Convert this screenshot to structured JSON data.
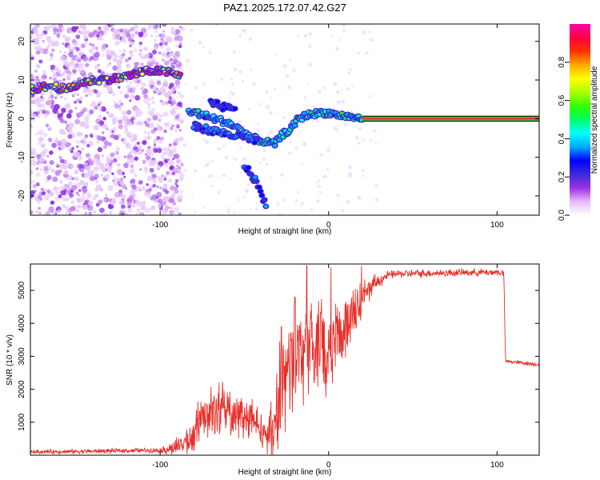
{
  "title": "PAZ1.2025.172.07.42.G27",
  "colors": {
    "snr_line": "#e8302a",
    "frame": "#000000",
    "scatter_purple": "#8a2be2",
    "carrier_core": "#e8302a",
    "carrier_glow": "#33cc33"
  },
  "chart_data": [
    {
      "type": "heatmap",
      "xlabel": "Height of straight line (km)",
      "ylabel": "Frequency (Hz)",
      "xlim": [
        -177,
        125
      ],
      "ylim": [
        -25,
        24.5
      ],
      "xticks": [
        -100,
        0,
        100
      ],
      "yticks": [
        -20,
        -10,
        0,
        10,
        20
      ],
      "grid": false,
      "colorbar": {
        "label": "Normalized spectral amplitude",
        "range": [
          0,
          1
        ],
        "ticks": [
          0.0,
          0.2,
          0.4,
          0.6,
          0.8
        ],
        "colormap": [
          "#ffffff",
          "#e8b8f8",
          "#9b30e8",
          "#3a2bd8",
          "#0000ff",
          "#00aaff",
          "#00ffff",
          "#00ff66",
          "#33ff00",
          "#aaff00",
          "#ffff00",
          "#ffaa00",
          "#ff3300",
          "#ff0044",
          "#ff00aa"
        ]
      },
      "ridges": [
        {
          "name": "carrier",
          "amplitude": 0.9,
          "points": [
            [
              -177,
              7.5
            ],
            [
              -165,
              8.5
            ],
            [
              -155,
              7.5
            ],
            [
              -145,
              9.5
            ],
            [
              -137,
              10
            ],
            [
              -125,
              10.5
            ],
            [
              -115,
              11.5
            ],
            [
              -105,
              12.5
            ],
            [
              -95,
              12
            ],
            [
              -88,
              11
            ]
          ]
        },
        {
          "name": "carrier",
          "amplitude": 0.45,
          "points": [
            [
              -83,
              2
            ],
            [
              -75,
              1
            ],
            [
              -68,
              0
            ],
            [
              -60,
              -1
            ],
            [
              -52,
              -3
            ],
            [
              -45,
              -5
            ],
            [
              -38,
              -6
            ],
            [
              -32,
              -6.5
            ],
            [
              -27,
              -4
            ],
            [
              -22,
              -2.5
            ],
            [
              -18,
              0
            ],
            [
              -12,
              1
            ],
            [
              -5,
              1.5
            ],
            [
              0,
              1.5
            ],
            [
              5,
              1
            ],
            [
              12,
              0.5
            ],
            [
              20,
              0
            ],
            [
              30,
              0
            ],
            [
              60,
              0
            ],
            [
              105,
              0
            ],
            [
              125,
              0
            ]
          ]
        },
        {
          "name": "secondary",
          "amplitude": 0.3,
          "points": [
            [
              -80,
              -2
            ],
            [
              -70,
              -3
            ],
            [
              -60,
              -4
            ],
            [
              -50,
              -5
            ],
            [
              -42,
              -6
            ]
          ]
        },
        {
          "name": "secondary",
          "amplitude": 0.25,
          "points": [
            [
              -70,
              4
            ],
            [
              -62,
              3
            ],
            [
              -55,
              2
            ]
          ]
        },
        {
          "name": "fading",
          "amplitude": 0.3,
          "points": [
            [
              -50,
              -12
            ],
            [
              -45,
              -15
            ],
            [
              -40,
              -19
            ],
            [
              -37,
              -23
            ]
          ]
        }
      ]
    },
    {
      "type": "line",
      "xlabel": "Height of straight line (km)",
      "ylabel": "SNR (10 * v/v)",
      "xlim": [
        -177,
        125
      ],
      "ylim": [
        0,
        5800
      ],
      "xticks": [
        -100,
        0,
        100
      ],
      "yticks": [
        1000,
        2000,
        3000,
        4000,
        5000
      ],
      "grid": false,
      "series": [
        {
          "envelope": [
            [
              -177,
              100
            ],
            [
              -160,
              110
            ],
            [
              -140,
              120
            ],
            [
              -120,
              140
            ],
            [
              -100,
              150
            ],
            [
              -92,
              210
            ],
            [
              -85,
              350
            ],
            [
              -80,
              600
            ],
            [
              -75,
              1100
            ],
            [
              -70,
              1350
            ],
            [
              -60,
              1300
            ],
            [
              -50,
              1150
            ],
            [
              -42,
              900
            ],
            [
              -35,
              600
            ],
            [
              -30,
              1200
            ],
            [
              -26,
              2200
            ],
            [
              -22,
              2700
            ],
            [
              -18,
              3000
            ],
            [
              -14,
              3200
            ],
            [
              -10,
              3400
            ],
            [
              -5,
              3300
            ],
            [
              0,
              3500
            ],
            [
              5,
              3700
            ],
            [
              10,
              3900
            ],
            [
              15,
              4300
            ],
            [
              20,
              4800
            ],
            [
              25,
              5100
            ],
            [
              30,
              5300
            ],
            [
              35,
              5450
            ],
            [
              40,
              5500
            ],
            [
              60,
              5520
            ],
            [
              80,
              5540
            ],
            [
              100,
              5550
            ],
            [
              104,
              5530
            ],
            [
              105,
              2850
            ],
            [
              115,
              2800
            ],
            [
              125,
              2750
            ]
          ],
          "noise": [
            [
              -177,
              60
            ],
            [
              -100,
              70
            ],
            [
              -85,
              400
            ],
            [
              -70,
              700
            ],
            [
              -50,
              650
            ],
            [
              -38,
              500
            ],
            [
              -30,
              1300
            ],
            [
              -15,
              1500
            ],
            [
              0,
              1400
            ],
            [
              15,
              1000
            ],
            [
              25,
              300
            ],
            [
              35,
              120
            ],
            [
              104,
              100
            ],
            [
              105,
              60
            ],
            [
              125,
              60
            ]
          ],
          "spikes": [
            [
              -13,
              5750
            ],
            [
              -28,
              3900
            ],
            [
              -20,
              4800
            ]
          ]
        }
      ]
    }
  ]
}
